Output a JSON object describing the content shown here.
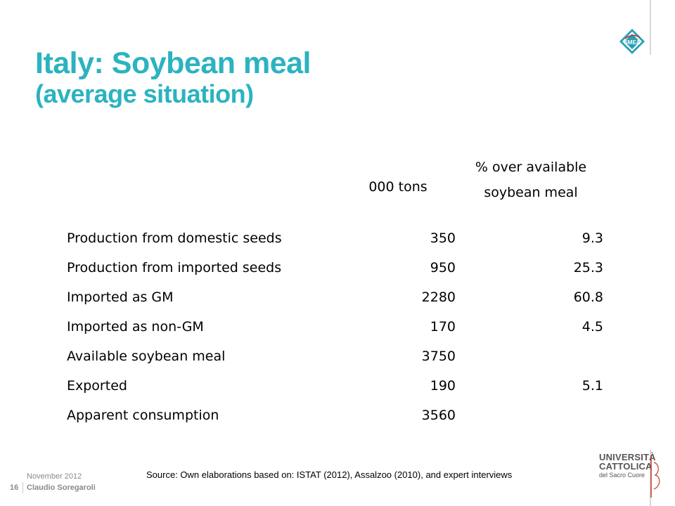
{
  "slide": {
    "title_line1": "Italy: Soybean meal",
    "title_line2": "(average situation)",
    "col_tons_header": "000 tons",
    "col_pct_header_line1": "% over available",
    "col_pct_header_line2": "soybean meal",
    "rows": [
      {
        "label": "Production from domestic seeds",
        "tons": "350",
        "pct": "9.3"
      },
      {
        "label": "Production from imported seeds",
        "tons": "950",
        "pct": "25.3"
      },
      {
        "label": "Imported as GM",
        "tons": "2280",
        "pct": "60.8"
      },
      {
        "label": "Imported as non-GM",
        "tons": "170",
        "pct": "4.5"
      },
      {
        "label": "Available soybean meal",
        "tons": "3750",
        "pct": ""
      },
      {
        "label": "Exported",
        "tons": "190",
        "pct": "5.1"
      },
      {
        "label": "Apparent consumption",
        "tons": "3560",
        "pct": ""
      }
    ],
    "source": "Source: Own elaborations based on: ISTAT (2012), Assalzoo (2010), and expert interviews"
  },
  "footer": {
    "date": "November 2012",
    "page_number": "16",
    "author": "Claudio Soregaroli"
  },
  "logos": {
    "smea_text": "SMEA",
    "university_line1": "UNIVERSITÀ",
    "university_line2": "CATTOLICA",
    "university_line3": "del Sacro Cuore"
  },
  "colors": {
    "title": "#2bb3c0",
    "footer_text": "#8a8a8a"
  }
}
